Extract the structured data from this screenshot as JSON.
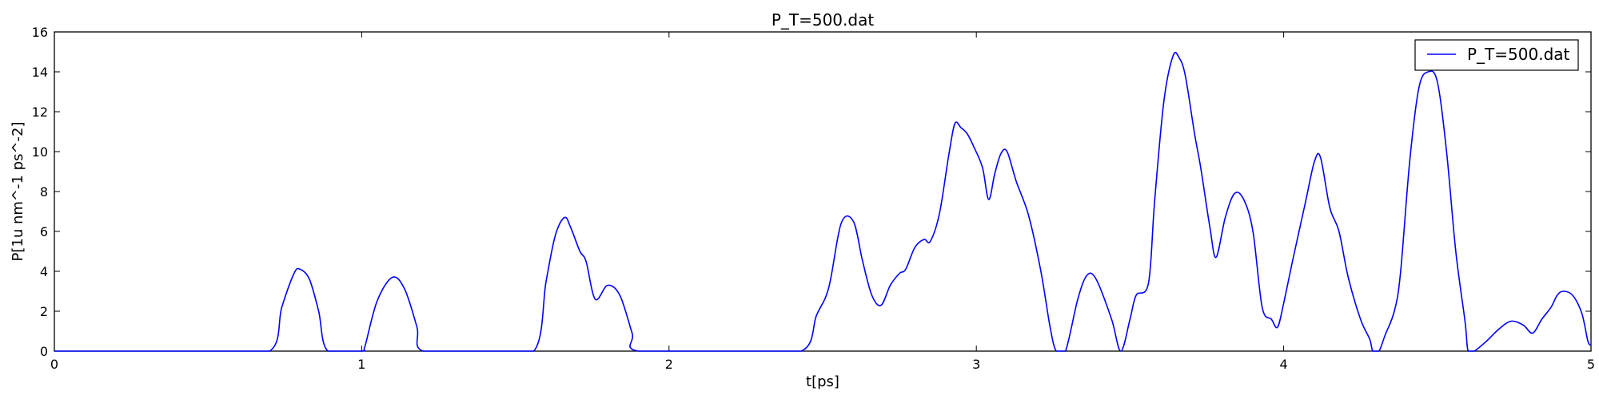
{
  "chart_data": {
    "type": "line",
    "title": "P_T=500.dat",
    "xlabel": "t[ps]",
    "ylabel": "P[1u nm^-1 ps^-2]",
    "xlim": [
      0,
      5
    ],
    "ylim": [
      0,
      16
    ],
    "xticks": [
      0,
      1,
      2,
      3,
      4,
      5
    ],
    "xtick_labels": [
      "0",
      "1",
      "2",
      "3",
      "4",
      "5"
    ],
    "yticks": [
      0,
      2,
      4,
      6,
      8,
      10,
      12,
      14,
      16
    ],
    "ytick_labels": [
      "0",
      "2",
      "4",
      "6",
      "8",
      "10",
      "12",
      "14",
      "16"
    ],
    "grid": false,
    "legend_position": "top-right",
    "series": [
      {
        "name": "P_T=500.dat",
        "color": "#0000ff",
        "x": [
          0,
          0.5,
          0.7,
          0.74,
          0.78,
          0.8,
          0.83,
          0.86,
          0.89,
          1.0,
          1.01,
          1.05,
          1.1,
          1.14,
          1.18,
          1.2,
          1.4,
          1.56,
          1.6,
          1.63,
          1.66,
          1.68,
          1.71,
          1.73,
          1.76,
          1.8,
          1.84,
          1.88,
          1.9,
          2.2,
          2.43,
          2.48,
          2.52,
          2.56,
          2.6,
          2.63,
          2.66,
          2.69,
          2.72,
          2.75,
          2.77,
          2.8,
          2.83,
          2.85,
          2.88,
          2.91,
          2.93,
          2.95,
          2.97,
          2.99,
          3.02,
          3.04,
          3.06,
          3.08,
          3.1,
          3.13,
          3.17,
          3.21,
          3.24,
          3.26,
          3.29,
          3.33,
          3.36,
          3.39,
          3.44,
          3.47,
          3.5,
          3.52,
          3.56,
          3.58,
          3.61,
          3.64,
          3.66,
          3.68,
          3.71,
          3.73,
          3.76,
          3.78,
          3.81,
          3.84,
          3.87,
          3.9,
          3.93,
          3.96,
          3.98,
          4.0,
          4.03,
          4.07,
          4.1,
          4.12,
          4.15,
          4.18,
          4.21,
          4.25,
          4.28,
          4.29,
          4.31,
          4.33,
          4.36,
          4.38,
          4.41,
          4.44,
          4.47,
          4.5,
          4.53,
          4.56,
          4.59,
          4.6,
          4.62,
          4.66,
          4.7,
          4.74,
          4.78,
          4.81,
          4.84,
          4.87,
          4.89,
          4.91,
          4.94,
          4.97,
          4.99,
          5.0
        ],
        "y": [
          0,
          0,
          0,
          2.2,
          3.9,
          4.1,
          3.6,
          2.0,
          0,
          0,
          0.2,
          2.5,
          3.7,
          3.1,
          1.2,
          0,
          0,
          0,
          3.5,
          5.8,
          6.7,
          6.2,
          5.0,
          4.5,
          2.6,
          3.3,
          2.8,
          0.9,
          0,
          0,
          0,
          1.8,
          3.2,
          6.4,
          6.5,
          4.5,
          2.8,
          2.3,
          3.3,
          3.9,
          4.1,
          5.2,
          5.6,
          5.5,
          6.9,
          9.8,
          11.4,
          11.2,
          10.9,
          10.3,
          9.2,
          7.6,
          8.9,
          9.9,
          10.0,
          8.5,
          6.8,
          4.0,
          1.2,
          0,
          0,
          2.6,
          3.8,
          3.6,
          1.6,
          0,
          1.6,
          2.8,
          3.4,
          7.5,
          12.5,
          14.8,
          14.7,
          13.8,
          10.9,
          9.2,
          6.2,
          4.7,
          6.7,
          7.9,
          7.6,
          6.0,
          2.2,
          1.6,
          1.2,
          2.4,
          4.6,
          7.4,
          9.5,
          9.7,
          7.2,
          6.0,
          3.7,
          1.6,
          0.6,
          0,
          0,
          0.8,
          2.0,
          3.9,
          9.5,
          13.2,
          14.0,
          13.5,
          10.0,
          5.0,
          1.5,
          0,
          0,
          0.5,
          1.1,
          1.5,
          1.3,
          0.9,
          1.6,
          2.2,
          2.8,
          3.0,
          2.8,
          1.9,
          0.5,
          0.3
        ]
      }
    ]
  }
}
